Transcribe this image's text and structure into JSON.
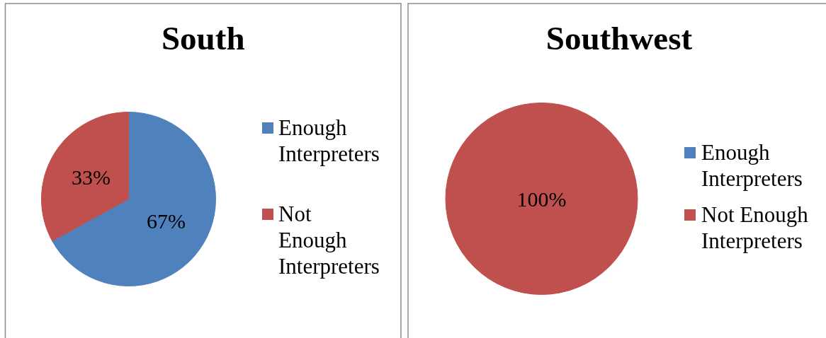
{
  "chart_data": [
    {
      "type": "pie",
      "title": "South",
      "categories": [
        "Enough Interpreters",
        "Not Enough Interpreters"
      ],
      "values": [
        67,
        33
      ],
      "colors": [
        "#4f81bd",
        "#c0504d"
      ],
      "value_labels": [
        "67%",
        "33%"
      ],
      "legend": "right"
    },
    {
      "type": "pie",
      "title": "Southwest",
      "categories": [
        "Enough Interpreters",
        "Not Enough Interpreters"
      ],
      "values": [
        0,
        100
      ],
      "colors": [
        "#4f81bd",
        "#c0504d"
      ],
      "value_labels": [
        null,
        "100%"
      ],
      "legend": "right"
    }
  ]
}
